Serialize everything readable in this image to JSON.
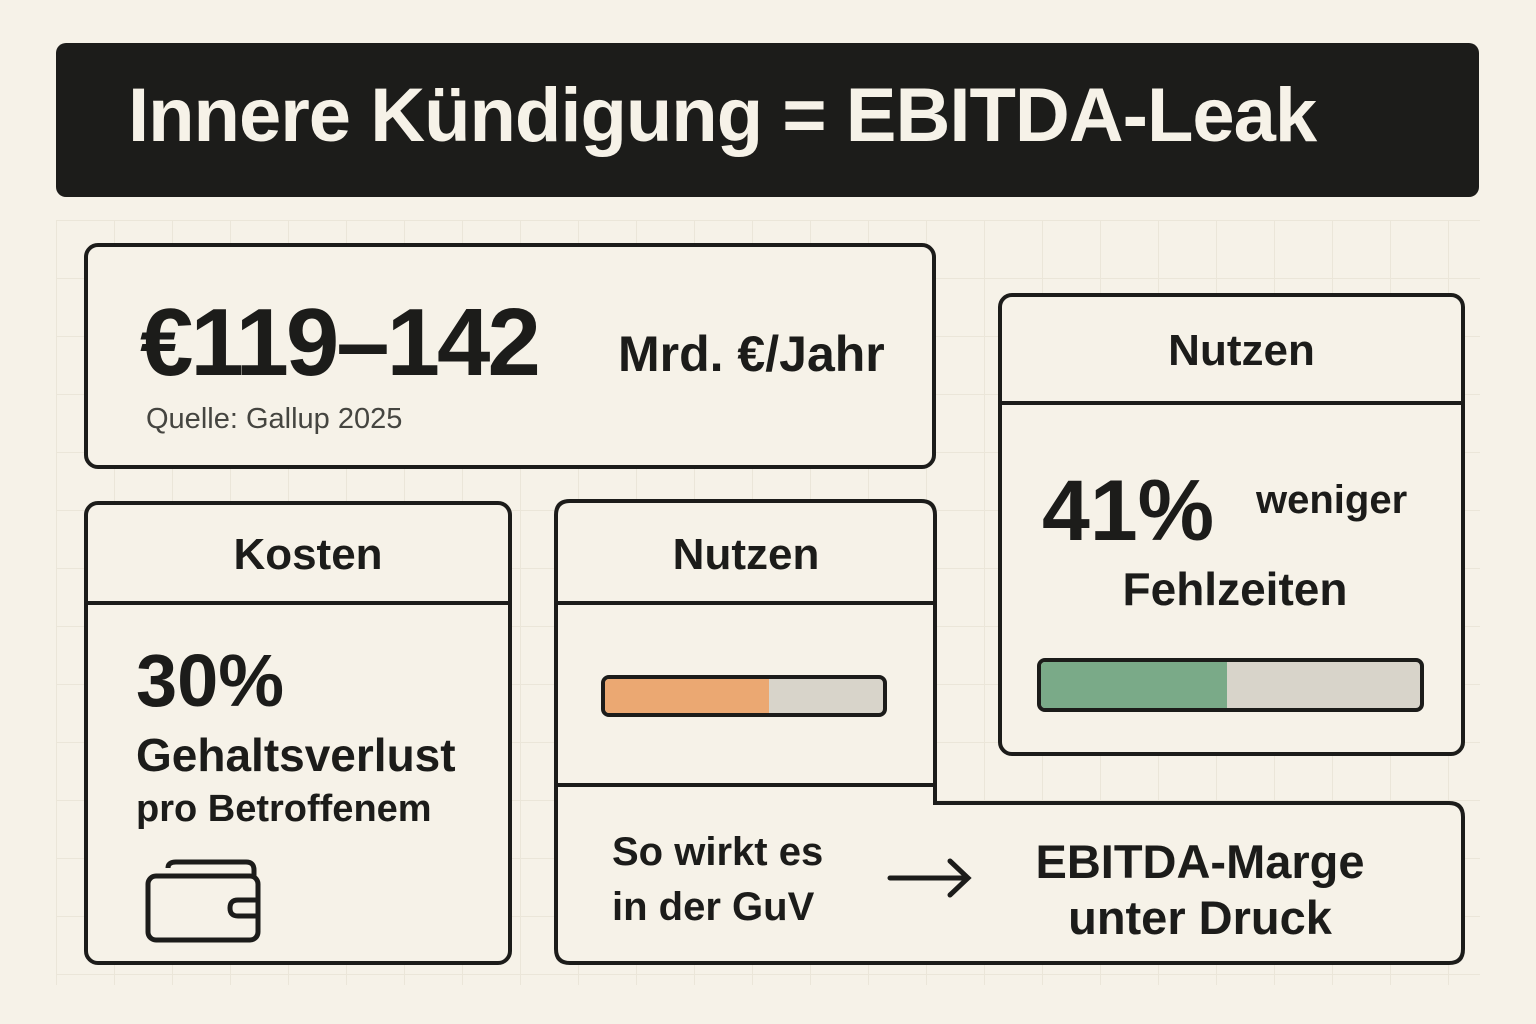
{
  "title": "Innere Kündigung = EBITDA-Leak",
  "headline": {
    "value": "€119–142",
    "unit": "Mrd. €/Jahr",
    "source": "Quelle: Gallup 2025"
  },
  "costs": {
    "header": "Kosten",
    "value": "30%",
    "line1": "Gehaltsverlust",
    "line2": "pro Betroffenem",
    "icon": "wallet-icon"
  },
  "benefit_middle": {
    "header": "Nutzen",
    "progress": 0.59,
    "bar_color": "#eba872"
  },
  "benefit_right": {
    "header": "Nutzen",
    "value": "41%",
    "suffix": "weniger",
    "label": "Fehlzeiten",
    "progress": 0.49,
    "bar_color": "#7aaa88"
  },
  "impact": {
    "left_line1": "So wirkt es",
    "left_line2": "in der GuV",
    "arrow_icon": "arrow-right-icon",
    "right_line1": "EBITDA-Marge",
    "right_line2": "unter Druck"
  }
}
